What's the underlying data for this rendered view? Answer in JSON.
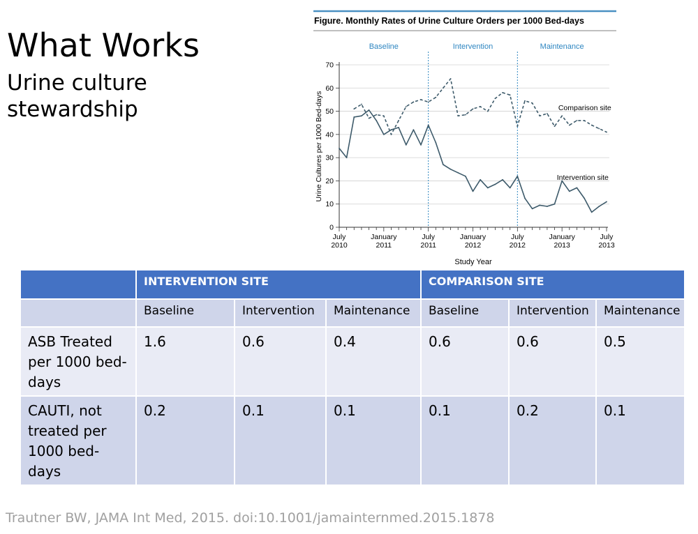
{
  "slide": {
    "title": "What Works",
    "subtitle": "Urine culture stewardship",
    "citation": "Trautner BW, JAMA Int Med, 2015. doi:10.1001/jamainternmed.2015.1878"
  },
  "colors": {
    "header_blue": "#4472c4",
    "band_dark": "#cfd5ea",
    "band_light": "#e9ebf5",
    "figure_rule": "#4a90c2",
    "phase_label": "#2e86c1",
    "series_line": "#3d5a6a",
    "citation_gray": "#a0a0a0"
  },
  "chart_data": {
    "type": "line",
    "title": "Figure. Monthly Rates of Urine Culture Orders per 1000 Bed-days",
    "xlabel": "Study Year",
    "ylabel": "Urine Cultures per 1000 Bed-days",
    "ylim": [
      0,
      70
    ],
    "yticks": [
      0,
      10,
      20,
      30,
      40,
      50,
      60,
      70
    ],
    "grid": true,
    "x_start": "July 2010",
    "x_end": "July 2013",
    "xticks": [
      {
        "month": 0,
        "label": [
          "July",
          "2010"
        ]
      },
      {
        "month": 6,
        "label": [
          "January",
          "2011"
        ]
      },
      {
        "month": 12,
        "label": [
          "July",
          "2011"
        ]
      },
      {
        "month": 18,
        "label": [
          "January",
          "2012"
        ]
      },
      {
        "month": 24,
        "label": [
          "July",
          "2012"
        ]
      },
      {
        "month": 30,
        "label": [
          "January",
          "2013"
        ]
      },
      {
        "month": 36,
        "label": [
          "July",
          "2013"
        ]
      }
    ],
    "phases": [
      {
        "name": "Baseline",
        "start": 0,
        "end": 12
      },
      {
        "name": "Intervention",
        "start": 12,
        "end": 24
      },
      {
        "name": "Maintenance",
        "start": 24,
        "end": 36
      }
    ],
    "phase_dividers": [
      12,
      24
    ],
    "series": [
      {
        "name": "Comparison site",
        "style": "dashed",
        "label_at": [
          29.5,
          50.5
        ],
        "x": [
          2,
          3,
          4,
          5,
          6,
          7,
          8,
          9,
          10,
          11,
          12,
          13,
          14,
          15,
          16,
          17,
          18,
          19,
          20,
          21,
          22,
          23,
          24,
          25,
          26,
          27,
          28,
          29,
          30,
          31,
          32,
          33,
          34,
          35,
          36
        ],
        "y": [
          51,
          53,
          47,
          48.5,
          48,
          40,
          46,
          52,
          54,
          55,
          54,
          56,
          60,
          64,
          48,
          48.5,
          51,
          52,
          50,
          55.5,
          58,
          57,
          43.5,
          54.5,
          53.5,
          48,
          49,
          43.5,
          48,
          44,
          46,
          46,
          44,
          42.5,
          41
        ]
      },
      {
        "name": "Intervention site",
        "style": "solid",
        "label_at": [
          29.3,
          20.5
        ],
        "x": [
          0,
          1,
          2,
          3,
          4,
          5,
          6,
          7,
          8,
          9,
          10,
          11,
          12,
          13,
          14,
          15,
          16,
          17,
          18,
          19,
          20,
          21,
          22,
          23,
          24,
          25,
          26,
          27,
          28,
          29,
          30,
          31,
          32,
          33,
          34,
          35,
          36
        ],
        "y": [
          34,
          30,
          47.5,
          48,
          50.5,
          46,
          40,
          42,
          43,
          35.5,
          42,
          35.5,
          44,
          36.5,
          27,
          25,
          23.5,
          22,
          15.5,
          20.5,
          17,
          18.5,
          20.5,
          17,
          22,
          12.5,
          8,
          9.5,
          9,
          10,
          20,
          15.5,
          17,
          12.5,
          6.5,
          9,
          11
        ]
      }
    ]
  },
  "table": {
    "site_headers": [
      "",
      "INTERVENTION SITE",
      "COMPARISON SITE"
    ],
    "phase_headers": [
      "",
      "Baseline",
      "Intervention",
      "Maintenance",
      "Baseline",
      "Intervention",
      "Maintenance"
    ],
    "rows": [
      {
        "label": "ASB Treated per 1000 bed-days",
        "values": [
          "1.6",
          "0.6",
          "0.4",
          "0.6",
          "0.6",
          "0.5"
        ]
      },
      {
        "label": "CAUTI, not treated per 1000 bed-days",
        "values": [
          "0.2",
          "0.1",
          "0.1",
          "0.1",
          "0.2",
          "0.1"
        ]
      }
    ]
  }
}
